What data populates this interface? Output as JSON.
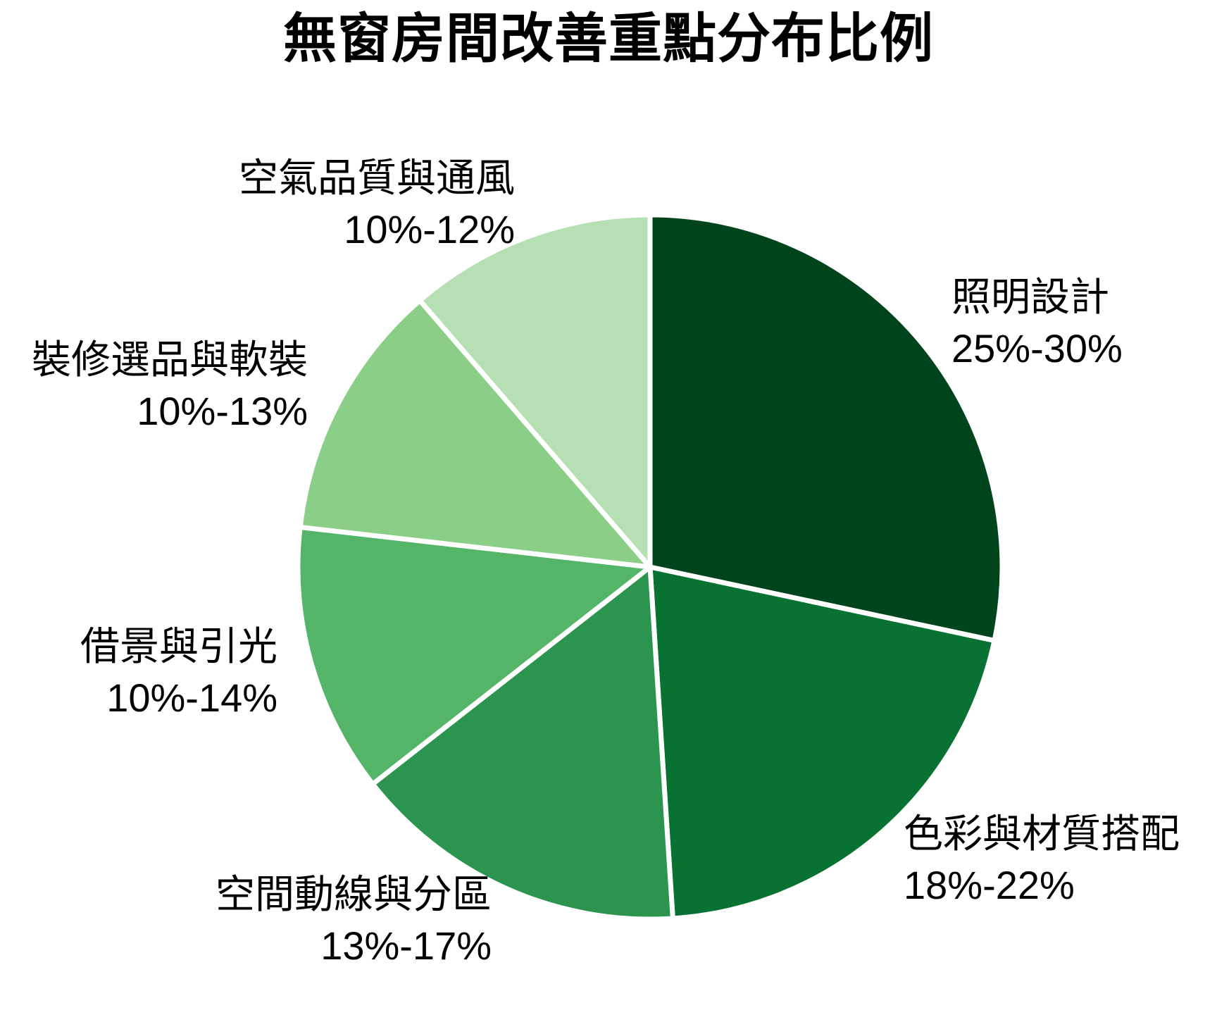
{
  "chart_data": {
    "type": "pie",
    "title": "無窗房間改善重點分布比例",
    "direction": "clockwise",
    "start_angle_deg": 0,
    "legend_position": "none",
    "background_color": "#ffffff",
    "separator_color": "#ffffff",
    "text_color": "#000000",
    "slices": [
      {
        "label": "照明設計",
        "range": "25%-30%",
        "value_min": 25,
        "value_max": 30,
        "value_mid": 27.5,
        "color": "#00441b"
      },
      {
        "label": "色彩與材質搭配",
        "range": "18%-22%",
        "value_min": 18,
        "value_max": 22,
        "value_mid": 20.0,
        "color": "#077231"
      },
      {
        "label": "空間動線與分區",
        "range": "13%-17%",
        "value_min": 13,
        "value_max": 17,
        "value_mid": 15.0,
        "color": "#2b944e"
      },
      {
        "label": "借景與引光",
        "range": "10%-14%",
        "value_min": 10,
        "value_max": 14,
        "value_mid": 12.0,
        "color": "#54b468"
      },
      {
        "label": "裝修選品與軟裝",
        "range": "10%-13%",
        "value_min": 10,
        "value_max": 13,
        "value_mid": 11.5,
        "color": "#8bce87"
      },
      {
        "label": "空氣品質與通風",
        "range": "10%-12%",
        "value_min": 10,
        "value_max": 12,
        "value_mid": 11.0,
        "color": "#b6e0b3"
      }
    ]
  }
}
